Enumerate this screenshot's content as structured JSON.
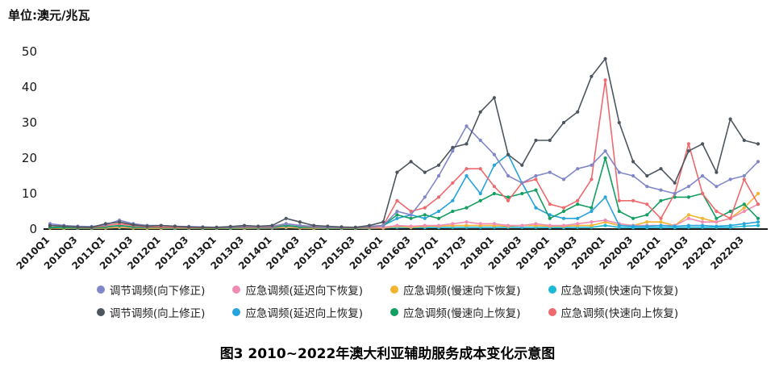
{
  "unit_label": "单位:澳元/兆瓦",
  "caption": "图3  2010~2022年澳大利亚辅助服务成本变化示意图",
  "chart_data": {
    "type": "line",
    "title": "2010~2022年澳大利亚辅助服务成本变化示意图",
    "ylabel": "澳元/兆瓦",
    "ylim": [
      0,
      50
    ],
    "yticks": [
      0,
      10,
      20,
      30,
      40,
      50
    ],
    "x_tick_every": 2,
    "x": [
      "2010Q1",
      "2010Q2",
      "2010Q3",
      "2010Q4",
      "2011Q1",
      "2011Q2",
      "2011Q3",
      "2011Q4",
      "2012Q1",
      "2012Q2",
      "2012Q3",
      "2012Q4",
      "2013Q1",
      "2013Q2",
      "2013Q3",
      "2013Q4",
      "2014Q1",
      "2014Q2",
      "2014Q3",
      "2014Q4",
      "2015Q1",
      "2015Q2",
      "2015Q3",
      "2015Q4",
      "2016Q1",
      "2016Q2",
      "2016Q3",
      "2016Q4",
      "2017Q1",
      "2017Q2",
      "2017Q3",
      "2017Q4",
      "2018Q1",
      "2018Q2",
      "2018Q3",
      "2018Q4",
      "2019Q1",
      "2019Q2",
      "2019Q3",
      "2019Q4",
      "2020Q1",
      "2020Q2",
      "2020Q3",
      "2020Q4",
      "2021Q1",
      "2021Q2",
      "2021Q3",
      "2021Q4",
      "2022Q1",
      "2022Q2",
      "2022Q3",
      "2022Q4"
    ],
    "series": [
      {
        "name": "调节调频(向下修正)",
        "color": "#8087c8",
        "values": [
          1.5,
          1,
          0.8,
          0.7,
          1.2,
          2.5,
          1.5,
          1,
          1,
          0.8,
          0.7,
          0.6,
          0.5,
          0.6,
          0.8,
          0.7,
          0.8,
          1.5,
          1,
          0.8,
          0.6,
          0.5,
          0.5,
          0.8,
          1,
          5,
          4,
          9,
          15,
          22,
          29,
          25,
          21,
          15,
          13,
          15,
          16,
          14,
          17,
          18,
          22,
          16,
          15,
          12,
          11,
          10,
          12,
          15,
          12,
          14,
          15,
          19
        ]
      },
      {
        "name": "应急调频(延迟向下恢复)",
        "color": "#f08cb4",
        "values": [
          0.5,
          0.4,
          0.3,
          0.3,
          0.5,
          0.8,
          0.5,
          0.4,
          0.4,
          0.3,
          0.3,
          0.3,
          0.3,
          0.3,
          0.4,
          0.3,
          0.4,
          0.8,
          0.5,
          0.4,
          0.3,
          0.3,
          0.3,
          0.4,
          0.5,
          1,
          0.8,
          1,
          1,
          1.5,
          2,
          1.5,
          1.5,
          1,
          1,
          1.5,
          1,
          1,
          1.5,
          2,
          2.5,
          1.5,
          1,
          1,
          1,
          1,
          3,
          2,
          2,
          3,
          5,
          7
        ]
      },
      {
        "name": "应急调频(慢速向下恢复)",
        "color": "#f2b431",
        "values": [
          0.3,
          0.2,
          0.2,
          0.2,
          0.3,
          0.5,
          0.3,
          0.2,
          0.2,
          0.2,
          0.2,
          0.2,
          0.2,
          0.2,
          0.2,
          0.2,
          0.3,
          0.5,
          0.3,
          0.2,
          0.2,
          0.2,
          0.2,
          0.3,
          0.3,
          0.8,
          0.5,
          0.8,
          0.8,
          1,
          1,
          1,
          1,
          0.8,
          1,
          1,
          0.8,
          0.8,
          1,
          1,
          2,
          1,
          1,
          2,
          2,
          1,
          4,
          3,
          2,
          3,
          6,
          10
        ]
      },
      {
        "name": "应急调频(快速向下恢复)",
        "color": "#1cb8d8",
        "values": [
          0.3,
          0.3,
          0.2,
          0.2,
          0.3,
          0.4,
          0.3,
          0.2,
          0.2,
          0.2,
          0.2,
          0.2,
          0.2,
          0.2,
          0.2,
          0.2,
          0.3,
          0.4,
          0.3,
          0.2,
          0.2,
          0.2,
          0.2,
          0.2,
          0.3,
          0.5,
          0.4,
          0.4,
          0.4,
          0.5,
          0.5,
          0.5,
          0.5,
          0.5,
          0.5,
          0.5,
          0.4,
          0.4,
          0.5,
          0.5,
          1,
          0.5,
          0.4,
          0.4,
          0.5,
          0.4,
          0.5,
          0.5,
          0.5,
          0.5,
          0.8,
          1
        ]
      },
      {
        "name": "调节调频(向上修正)",
        "color": "#4d5660",
        "values": [
          1,
          0.8,
          0.6,
          0.5,
          1.5,
          2,
          1.2,
          0.8,
          1,
          0.8,
          0.6,
          0.5,
          0.5,
          0.7,
          1,
          0.8,
          1,
          3,
          2,
          1,
          0.8,
          0.6,
          0.5,
          1,
          2,
          16,
          19,
          16,
          18,
          23,
          24,
          33,
          37,
          21,
          18,
          25,
          25,
          30,
          33,
          43,
          48,
          30,
          19,
          15,
          17,
          13,
          22,
          24,
          16,
          31,
          25,
          24
        ]
      },
      {
        "name": "应急调频(延迟向上恢复)",
        "color": "#27a4dc",
        "values": [
          0.5,
          0.4,
          0.3,
          0.3,
          0.6,
          1,
          0.6,
          0.4,
          0.4,
          0.3,
          0.3,
          0.3,
          0.3,
          0.3,
          0.4,
          0.3,
          0.4,
          1,
          0.6,
          0.4,
          0.3,
          0.3,
          0.3,
          0.5,
          1,
          3,
          4,
          3,
          5,
          8,
          15,
          10,
          18,
          21,
          13,
          6,
          4,
          3,
          3,
          5,
          9,
          1,
          0.8,
          0.8,
          1,
          0.8,
          1,
          1,
          0.8,
          1,
          1.5,
          2
        ]
      },
      {
        "name": "应急调频(慢速向上恢复)",
        "color": "#149e62",
        "values": [
          0.5,
          0.4,
          0.3,
          0.3,
          0.6,
          1,
          0.6,
          0.4,
          0.4,
          0.3,
          0.3,
          0.3,
          0.3,
          0.3,
          0.4,
          0.3,
          0.5,
          1,
          0.6,
          0.4,
          0.3,
          0.3,
          0.3,
          0.5,
          1,
          4,
          3,
          4,
          3,
          5,
          6,
          8,
          10,
          9,
          10,
          11,
          3,
          5,
          7,
          6,
          20,
          5,
          3,
          4,
          8,
          9,
          9,
          10,
          3,
          5,
          7,
          3
        ]
      },
      {
        "name": "应急调频(快速向上恢复)",
        "color": "#ee6a6e",
        "values": [
          1,
          0.8,
          0.5,
          0.4,
          1,
          1.5,
          1,
          0.6,
          0.6,
          0.5,
          0.4,
          0.4,
          0.4,
          0.5,
          0.6,
          0.5,
          0.6,
          1.5,
          1,
          0.6,
          0.5,
          0.4,
          0.4,
          0.6,
          1,
          8,
          5,
          6,
          9,
          13,
          17,
          17,
          12,
          8,
          13,
          14,
          7,
          6,
          8,
          14,
          42,
          8,
          8,
          7,
          3,
          10,
          24,
          10,
          5,
          3,
          14,
          7
        ]
      }
    ]
  }
}
